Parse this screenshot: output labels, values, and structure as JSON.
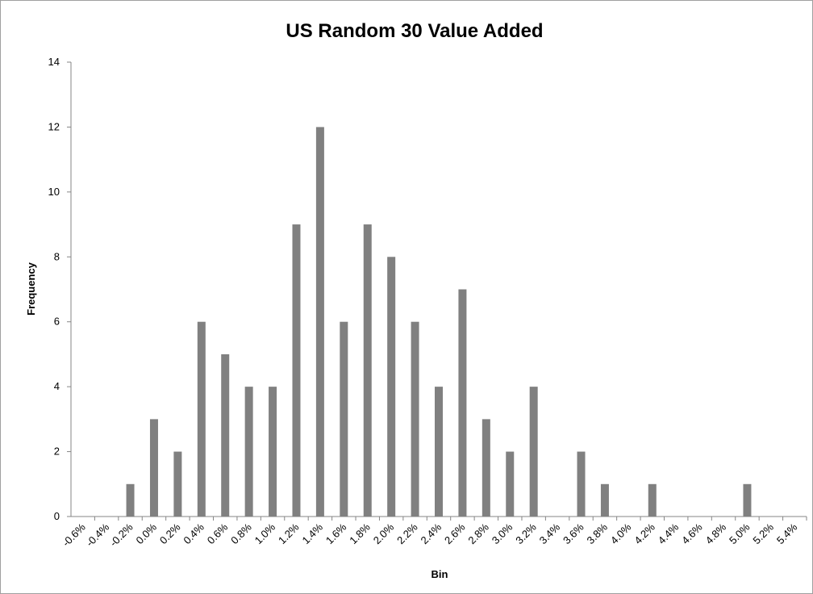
{
  "chart_data": {
    "type": "bar",
    "title": "US Random 30 Value Added",
    "x_label": "Bin",
    "y_label": "Frequency",
    "categories": [
      "-0.6%",
      "-0.4%",
      "-0.2%",
      "0.0%",
      "0.2%",
      "0.4%",
      "0.6%",
      "0.8%",
      "1.0%",
      "1.2%",
      "1.4%",
      "1.6%",
      "1.8%",
      "2.0%",
      "2.2%",
      "2.4%",
      "2.6%",
      "2.8%",
      "3.0%",
      "3.2%",
      "3.4%",
      "3.6%",
      "3.8%",
      "4.0%",
      "4.2%",
      "4.4%",
      "4.6%",
      "4.8%",
      "5.0%",
      "5.2%",
      "5.4%"
    ],
    "values": [
      0,
      0,
      1,
      3,
      2,
      6,
      5,
      4,
      4,
      9,
      12,
      6,
      9,
      8,
      6,
      4,
      7,
      3,
      2,
      4,
      0,
      2,
      1,
      0,
      1,
      0,
      0,
      0,
      1,
      0,
      0
    ],
    "color": "#808080",
    "ylim": [
      0,
      14
    ],
    "yticks": [
      0,
      2,
      4,
      6,
      8,
      10,
      12,
      14
    ],
    "grid": false
  }
}
